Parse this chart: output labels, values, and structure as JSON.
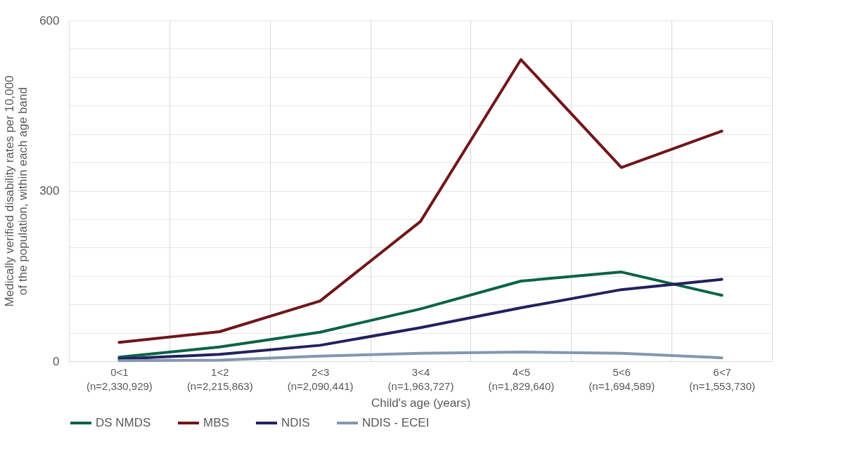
{
  "chart_data": {
    "type": "line",
    "xlabel": "Child's age (years)",
    "ylabel": "Medically verified disability rates per 10,000 of the population, within each age band",
    "categories": [
      "0<1\n(n=2,330,929)",
      "1<2\n(n=2,215,863)",
      "2<3\n(n=2,090,441)",
      "3<4\n(n=1,963,727)",
      "4<5\n(n=1,829,640)",
      "5<6\n(n=1,694,589)",
      "6<7\n(n=1,553,730)"
    ],
    "series": [
      {
        "name": "DS NMDS",
        "color": "#0b6346",
        "values": [
          7,
          25,
          51,
          92,
          141,
          157,
          116
        ]
      },
      {
        "name": "MBS",
        "color": "#70161a",
        "values": [
          33,
          52,
          106,
          246,
          531,
          341,
          405
        ]
      },
      {
        "name": "NDIS",
        "color": "#22215e",
        "values": [
          4,
          12,
          28,
          59,
          94,
          126,
          144
        ]
      },
      {
        "name": "NDIS - ECEI",
        "color": "#8497b0",
        "values": [
          1,
          2,
          9,
          14,
          16,
          14,
          6
        ]
      }
    ],
    "ylim": [
      0,
      600
    ],
    "yticks": [
      0,
      {
        "value": 50,
        "label": null
      },
      {
        "value": 100,
        "label": null
      },
      {
        "value": 150,
        "label": null
      },
      {
        "value": 200,
        "label": null
      },
      {
        "value": 250,
        "label": null
      },
      300,
      {
        "value": 350,
        "label": null
      },
      {
        "value": 400,
        "label": null
      },
      {
        "value": 450,
        "label": null
      },
      {
        "value": 500,
        "label": null
      },
      {
        "value": 550,
        "label": null
      },
      600
    ],
    "grid": true,
    "legend": "bottom",
    "line_style": "solid",
    "marker": "none"
  }
}
